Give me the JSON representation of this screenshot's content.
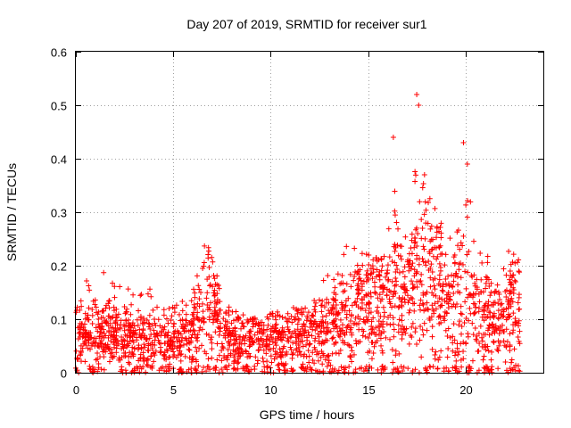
{
  "chart_data": {
    "type": "scatter",
    "title": "Day 207 of 2019, SRMTID for receiver sur1",
    "xlabel": "GPS time / hours",
    "ylabel": "SRMTID / TECUs",
    "xlim": [
      0,
      24
    ],
    "ylim": [
      0,
      0.6
    ],
    "xticks": [
      0,
      5,
      10,
      15,
      20
    ],
    "yticks": [
      0,
      0.1,
      0.2,
      0.3,
      0.4,
      0.5,
      0.6
    ],
    "xtick_labels": [
      "0",
      "5",
      "10",
      "15",
      "20"
    ],
    "ytick_labels": [
      "0",
      "0.1",
      "0.2",
      "0.3",
      "0.4",
      "0.5",
      "0.6"
    ],
    "grid": true,
    "marker": "plus",
    "color": "#ff0000",
    "series": [
      {
        "name": "SRMTID sur1",
        "envelope_hours": [
          0,
          1,
          2,
          3,
          4,
          5,
          6,
          6.5,
          7,
          7.5,
          8,
          9,
          10,
          11,
          12,
          13,
          13.5,
          14,
          14.5,
          15,
          15.5,
          16,
          16.3,
          16.5,
          17,
          17.5,
          17.7,
          18,
          18.5,
          19,
          19.5,
          20,
          20.5,
          21,
          21.5,
          22,
          22.5,
          23
        ],
        "typical_values": [
          0.06,
          0.07,
          0.07,
          0.06,
          0.06,
          0.06,
          0.07,
          0.12,
          0.13,
          0.08,
          0.06,
          0.06,
          0.06,
          0.06,
          0.07,
          0.08,
          0.09,
          0.11,
          0.12,
          0.12,
          0.12,
          0.13,
          0.16,
          0.13,
          0.14,
          0.18,
          0.2,
          0.19,
          0.15,
          0.14,
          0.12,
          0.15,
          0.12,
          0.1,
          0.1,
          0.1,
          0.12,
          0.1
        ],
        "max_values": [
          0.15,
          0.2,
          0.17,
          0.17,
          0.16,
          0.15,
          0.15,
          0.24,
          0.23,
          0.13,
          0.12,
          0.1,
          0.11,
          0.12,
          0.13,
          0.2,
          0.2,
          0.26,
          0.25,
          0.22,
          0.22,
          0.25,
          0.44,
          0.28,
          0.3,
          0.52,
          0.5,
          0.37,
          0.3,
          0.28,
          0.27,
          0.43,
          0.26,
          0.24,
          0.23,
          0.25,
          0.22,
          0.2
        ],
        "notable_points": [
          {
            "x": 16.3,
            "y": 0.44
          },
          {
            "x": 17.5,
            "y": 0.52
          },
          {
            "x": 17.6,
            "y": 0.5
          },
          {
            "x": 17.9,
            "y": 0.37
          },
          {
            "x": 19.9,
            "y": 0.43
          },
          {
            "x": 20.1,
            "y": 0.39
          }
        ]
      }
    ]
  }
}
